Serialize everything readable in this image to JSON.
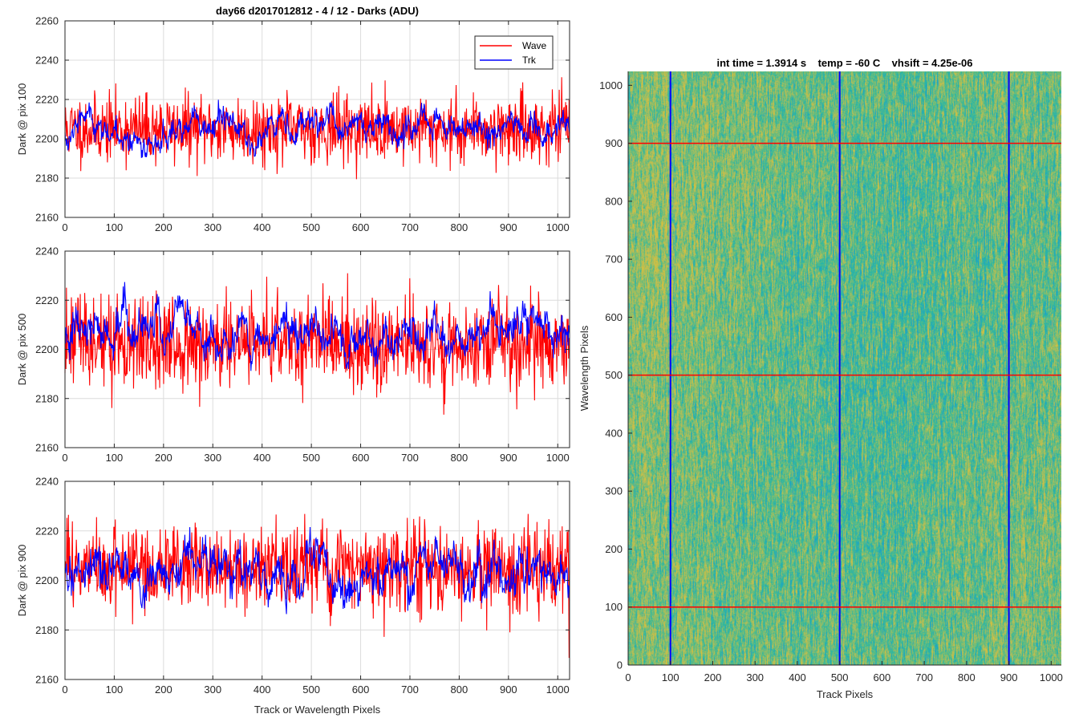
{
  "figure_title": "day66 d2017012812 - 4 / 12 - Darks (ADU)",
  "colors": {
    "wave": "#ff0000",
    "trk": "#0000ff",
    "grid": "#dcdcdc",
    "axis": "#262626",
    "background": "#ffffff"
  },
  "chart_data": [
    {
      "type": "line",
      "title": "day66 d2017012812 - 4 / 12 - Darks (ADU)",
      "xlabel": "",
      "ylabel": "Dark @ pix 100",
      "xlim": [
        0,
        1024
      ],
      "ylim": [
        2160,
        2260
      ],
      "xticks": [
        0,
        100,
        200,
        300,
        400,
        500,
        600,
        700,
        800,
        900,
        1000
      ],
      "yticks": [
        2160,
        2180,
        2200,
        2220,
        2240,
        2260
      ],
      "grid": true,
      "legend": {
        "position": "top-right",
        "entries": [
          "Wave",
          "Trk"
        ]
      },
      "series": [
        {
          "name": "Wave",
          "color": "#ff0000",
          "n_points": 1024,
          "mean": 2205,
          "noise": 8.5,
          "min": 2168,
          "max": 2241
        },
        {
          "name": "Trk",
          "color": "#0000ff",
          "n_points": 1024,
          "mean": 2205,
          "noise": 5.0,
          "min": 2180,
          "max": 2228
        }
      ]
    },
    {
      "type": "line",
      "title": "",
      "xlabel": "",
      "ylabel": "Dark @ pix 500",
      "xlim": [
        0,
        1024
      ],
      "ylim": [
        2160,
        2240
      ],
      "xticks": [
        0,
        100,
        200,
        300,
        400,
        500,
        600,
        700,
        800,
        900,
        1000
      ],
      "yticks": [
        2160,
        2180,
        2200,
        2220,
        2240
      ],
      "grid": true,
      "series": [
        {
          "name": "Wave",
          "color": "#ff0000",
          "n_points": 1024,
          "mean": 2202,
          "noise": 9.0,
          "min": 2166,
          "max": 2233
        },
        {
          "name": "Trk",
          "color": "#0000ff",
          "n_points": 1024,
          "mean": 2206,
          "noise": 5.5,
          "min": 2180,
          "max": 2234
        }
      ]
    },
    {
      "type": "line",
      "title": "",
      "xlabel": "Track or Wavelength Pixels",
      "ylabel": "Dark @ pix 900",
      "xlim": [
        0,
        1024
      ],
      "ylim": [
        2160,
        2240
      ],
      "xticks": [
        0,
        100,
        200,
        300,
        400,
        500,
        600,
        700,
        800,
        900,
        1000
      ],
      "yticks": [
        2160,
        2180,
        2200,
        2220,
        2240
      ],
      "grid": true,
      "series": [
        {
          "name": "Wave",
          "color": "#ff0000",
          "n_points": 1024,
          "mean": 2205,
          "noise": 9.0,
          "min": 2167,
          "max": 2227
        },
        {
          "name": "Trk",
          "color": "#0000ff",
          "n_points": 1024,
          "mean": 2204,
          "noise": 6.0,
          "min": 2176,
          "max": 2234
        }
      ]
    },
    {
      "type": "heatmap",
      "title": "int time = 1.3914 s    temp = -60 C    vhsift = 4.25e-06",
      "xlabel": "Track Pixels",
      "ylabel": "Wavelength Pixels",
      "xlim": [
        0,
        1024
      ],
      "ylim": [
        0,
        1024
      ],
      "xticks": [
        0,
        100,
        200,
        300,
        400,
        500,
        600,
        700,
        800,
        900,
        1000
      ],
      "yticks": [
        0,
        100,
        200,
        300,
        400,
        500,
        600,
        700,
        800,
        900,
        1000
      ],
      "colormap": "parula",
      "cmap_colors": [
        "#1ea2c8",
        "#2ab7a4",
        "#6cbd7a",
        "#b5bd58",
        "#d9c03b"
      ],
      "vertical_markers": {
        "x": [
          100,
          500,
          900
        ],
        "color": "#0000ff"
      },
      "horizontal_markers": {
        "y": [
          100,
          500,
          900
        ],
        "color": "#ff0000"
      }
    }
  ]
}
